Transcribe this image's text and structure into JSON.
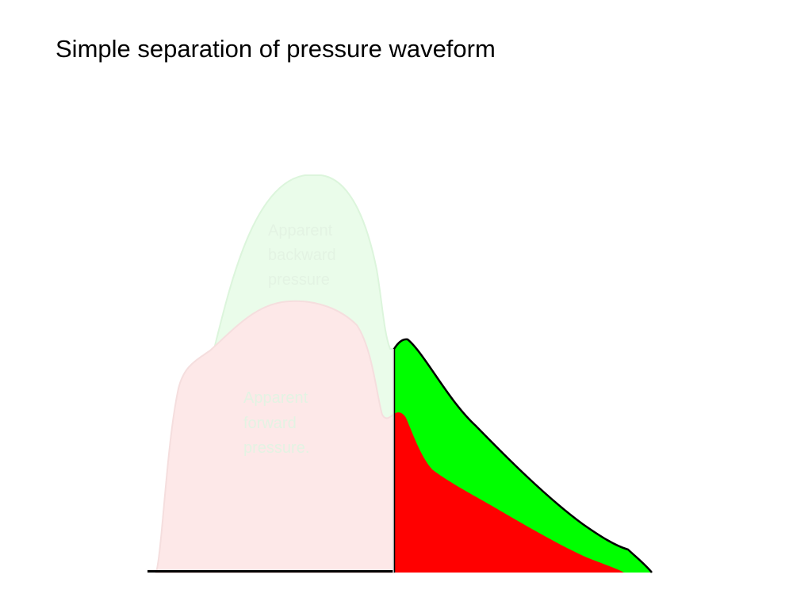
{
  "title": "Simple separation of pressure waveform",
  "labels": {
    "backward": [
      "Apparent",
      "backward",
      "pressure"
    ],
    "forward": [
      "Apparent",
      "forward",
      "pressure."
    ]
  },
  "colors": {
    "background": "#ffffff",
    "title_text": "#000000",
    "total_pressure_fill": "#00ff00",
    "forward_pressure_fill": "#ff0000",
    "faded_backward_fill": "#eafcea",
    "faded_backward_stroke": "#dcf5dc",
    "faded_forward_fill": "#fde8e8",
    "faded_forward_stroke": "#f5dede",
    "faded_text": "#e3f3e3",
    "outline": "#000000",
    "divider": "#d4d4d4"
  }
}
